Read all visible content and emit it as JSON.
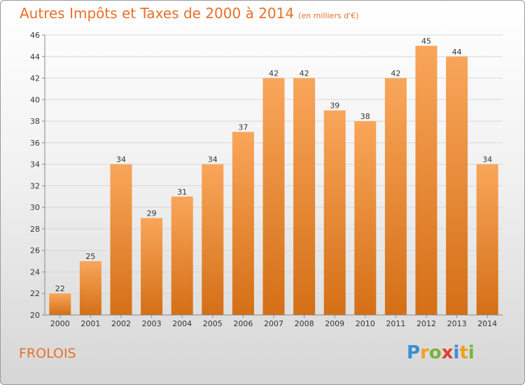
{
  "header": {
    "title": "Autres Impôts et Taxes de 2000 à 2014",
    "unit": "(en milliers d'€)"
  },
  "commune": "FROLOIS",
  "logo": {
    "text": "Proxiti",
    "letters": [
      {
        "ch": "P",
        "color": "#3a8fd1"
      },
      {
        "ch": "r",
        "color": "#f0a020"
      },
      {
        "ch": "o",
        "color": "#7ab33a"
      },
      {
        "ch": "x",
        "color": "#e2402a"
      },
      {
        "ch": "i",
        "color": "#3a8fd1"
      },
      {
        "ch": "t",
        "color": "#f0a020"
      },
      {
        "ch": "i",
        "color": "#7ab33a"
      }
    ]
  },
  "colors": {
    "accent": "#e8702a",
    "bar_top": "#f9a65a",
    "bar_bottom": "#d46f16",
    "grid": "#d8d8d8",
    "axis": "#888888"
  },
  "chart_data": {
    "type": "bar",
    "categories": [
      "2000",
      "2001",
      "2002",
      "2003",
      "2004",
      "2005",
      "2006",
      "2007",
      "2008",
      "2009",
      "2010",
      "2011",
      "2012",
      "2013",
      "2014"
    ],
    "values": [
      22,
      25,
      34,
      29,
      31,
      34,
      37,
      42,
      42,
      39,
      38,
      42,
      45,
      44,
      34
    ],
    "title": "Autres Impôts et Taxes de 2000 à 2014",
    "ylim": [
      20,
      46
    ],
    "yticks": [
      20,
      22,
      24,
      26,
      28,
      30,
      32,
      34,
      36,
      38,
      40,
      42,
      44,
      46
    ],
    "grid": true
  }
}
